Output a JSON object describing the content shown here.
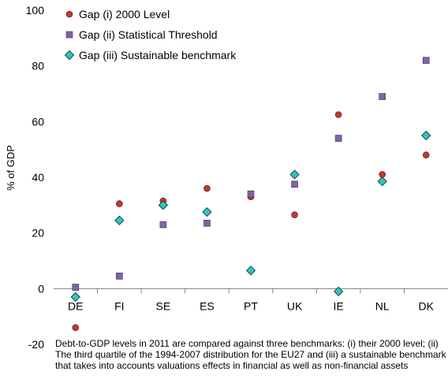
{
  "chart_data": {
    "type": "scatter",
    "title": "",
    "ylabel": "% of GDP",
    "xlabel": "",
    "ylim": [
      -20,
      100
    ],
    "yticks": [
      -20,
      0,
      20,
      40,
      60,
      80,
      100
    ],
    "categories": [
      "DE",
      "FI",
      "SE",
      "ES",
      "PT",
      "UK",
      "IE",
      "NL",
      "DK"
    ],
    "grid": false,
    "legend_position": "top-left",
    "series": [
      {
        "name": "Gap (i) 2000 Level",
        "marker": "circle",
        "color": "#c0392b",
        "values": [
          -14,
          30.5,
          31.5,
          36,
          33,
          26.5,
          62.5,
          41,
          48
        ]
      },
      {
        "name": "Gap (ii) Statistical Threshold",
        "marker": "square",
        "color": "#8064a2",
        "values": [
          0.5,
          4.5,
          23,
          23.5,
          34,
          37.5,
          54,
          69,
          82
        ]
      },
      {
        "name": "Gap (iii) Sustainable benchmark",
        "marker": "diamond",
        "color": "#2ec4c8",
        "values": [
          -3,
          24.5,
          30,
          27.5,
          6.5,
          41,
          -1,
          38.5,
          55
        ]
      }
    ]
  },
  "caption": "Debt-to-GDP levels in 2011 are compared against three benchmarks: (i) their 2000 level; (ii) The third quartile of the 1994-2007 distribution for the EU27 and (iii) a sustainable benchmark  that takes into accounts valuations effects in financial as well as non-financial assets"
}
